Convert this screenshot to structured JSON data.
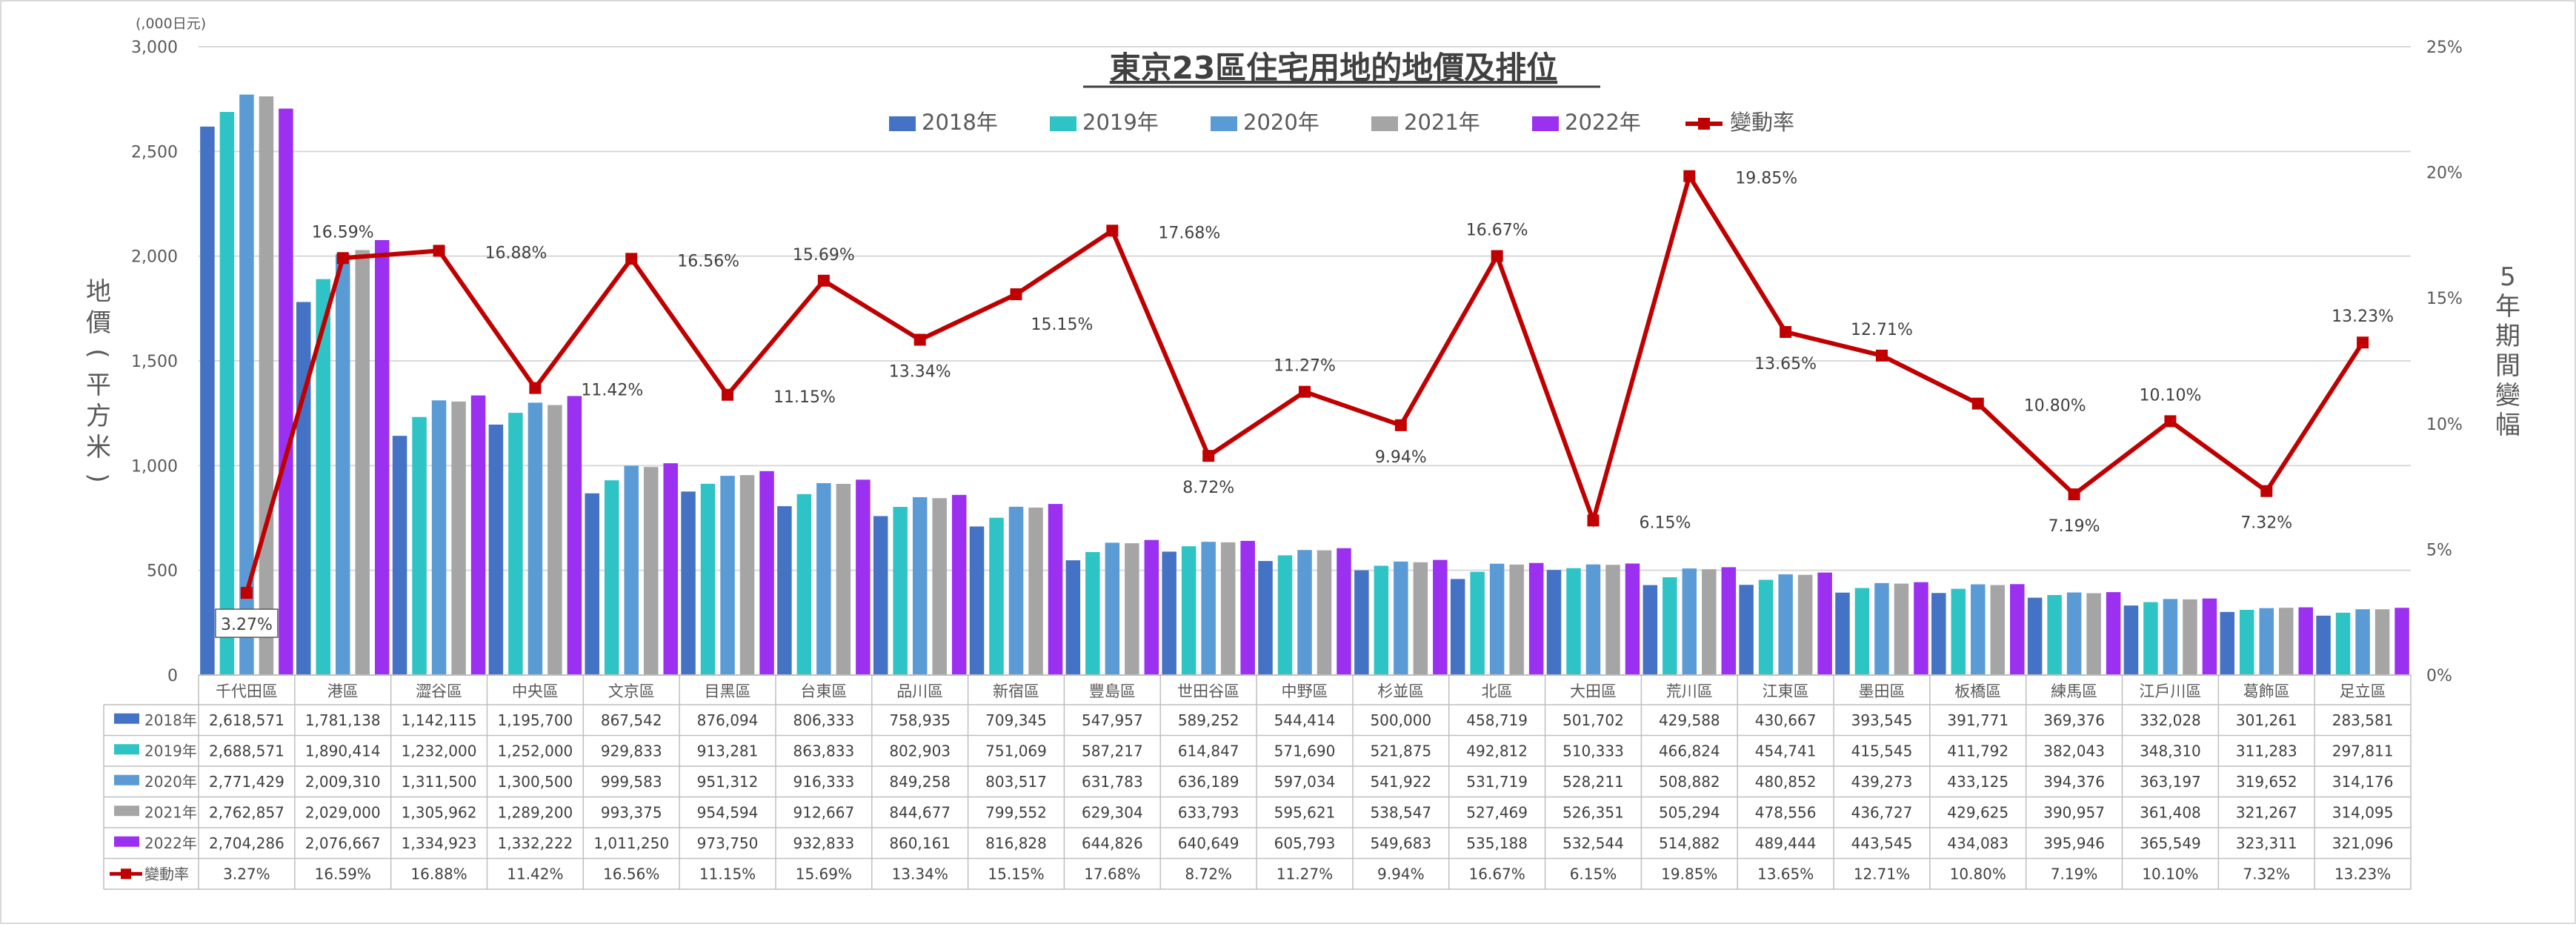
{
  "chart_data": {
    "type": "bar",
    "title": "東京23區住宅用地的地價及排位",
    "unit_label": "(,000日元)",
    "ylabel": "地價（平方米）",
    "y2label": "5年期間變幅",
    "ylim": [
      0,
      3000
    ],
    "y_ticks": [
      "0",
      "500",
      "1,000",
      "1,500",
      "2,000",
      "2,500",
      "3,000"
    ],
    "y2lim": [
      0,
      25
    ],
    "y2_ticks": [
      "0%",
      "5%",
      "10%",
      "15%",
      "20%",
      "25%"
    ],
    "grid": true,
    "legend_position": "top",
    "categories": [
      "千代田區",
      "港區",
      "澀谷區",
      "中央區",
      "文京區",
      "目黑區",
      "台東區",
      "品川區",
      "新宿區",
      "豐島區",
      "世田谷區",
      "中野區",
      "杉並區",
      "北區",
      "大田區",
      "荒川區",
      "江東區",
      "墨田區",
      "板橋區",
      "練馬區",
      "江戶川區",
      "葛飾區",
      "足立區"
    ],
    "series": [
      {
        "name": "2018年",
        "color": "#4472C4",
        "values": [
          2618571,
          1781138,
          1142115,
          1195700,
          867542,
          876094,
          806333,
          758935,
          709345,
          547957,
          589252,
          544414,
          500000,
          458719,
          501702,
          429588,
          430667,
          393545,
          391771,
          369376,
          332028,
          301261,
          283581
        ],
        "labels": [
          "2,618,571",
          "1,781,138",
          "1,142,115",
          "1,195,700",
          "867,542",
          "876,094",
          "806,333",
          "758,935",
          "709,345",
          "547,957",
          "589,252",
          "544,414",
          "500,000",
          "458,719",
          "501,702",
          "429,588",
          "430,667",
          "393,545",
          "391,771",
          "369,376",
          "332,028",
          "301,261",
          "283,581"
        ]
      },
      {
        "name": "2019年",
        "color": "#2EC4C6",
        "values": [
          2688571,
          1890414,
          1232000,
          1252000,
          929833,
          913281,
          863833,
          802903,
          751069,
          587217,
          614847,
          571690,
          521875,
          492812,
          510333,
          466824,
          454741,
          415545,
          411792,
          382043,
          348310,
          311283,
          297811
        ],
        "labels": [
          "2,688,571",
          "1,890,414",
          "1,232,000",
          "1,252,000",
          "929,833",
          "913,281",
          "863,833",
          "802,903",
          "751,069",
          "587,217",
          "614,847",
          "571,690",
          "521,875",
          "492,812",
          "510,333",
          "466,824",
          "454,741",
          "415,545",
          "411,792",
          "382,043",
          "348,310",
          "311,283",
          "297,811"
        ]
      },
      {
        "name": "2020年",
        "color": "#5B9BD5",
        "values": [
          2771429,
          2009310,
          1311500,
          1300500,
          999583,
          951312,
          916333,
          849258,
          803517,
          631783,
          636189,
          597034,
          541922,
          531719,
          528211,
          508882,
          480852,
          439273,
          433125,
          394376,
          363197,
          319652,
          314176
        ],
        "labels": [
          "2,771,429",
          "2,009,310",
          "1,311,500",
          "1,300,500",
          "999,583",
          "951,312",
          "916,333",
          "849,258",
          "803,517",
          "631,783",
          "636,189",
          "597,034",
          "541,922",
          "531,719",
          "528,211",
          "508,882",
          "480,852",
          "439,273",
          "433,125",
          "394,376",
          "363,197",
          "319,652",
          "314,176"
        ]
      },
      {
        "name": "2021年",
        "color": "#A5A5A5",
        "values": [
          2762857,
          2029000,
          1305962,
          1289200,
          993375,
          954594,
          912667,
          844677,
          799552,
          629304,
          633793,
          595621,
          538547,
          527469,
          526351,
          505294,
          478556,
          436727,
          429625,
          390957,
          361408,
          321267,
          314095
        ],
        "labels": [
          "2,762,857",
          "2,029,000",
          "1,305,962",
          "1,289,200",
          "993,375",
          "954,594",
          "912,667",
          "844,677",
          "799,552",
          "629,304",
          "633,793",
          "595,621",
          "538,547",
          "527,469",
          "526,351",
          "505,294",
          "478,556",
          "436,727",
          "429,625",
          "390,957",
          "361,408",
          "321,267",
          "314,095"
        ]
      },
      {
        "name": "2022年",
        "color": "#9B30F0",
        "values": [
          2704286,
          2076667,
          1334923,
          1332222,
          1011250,
          973750,
          932833,
          860161,
          816828,
          644826,
          640649,
          605793,
          549683,
          535188,
          532544,
          514882,
          489444,
          443545,
          434083,
          395946,
          365549,
          323311,
          321096
        ],
        "labels": [
          "2,704,286",
          "2,076,667",
          "1,334,923",
          "1,332,222",
          "1,011,250",
          "973,750",
          "932,833",
          "860,161",
          "816,828",
          "644,826",
          "640,649",
          "605,793",
          "549,683",
          "535,188",
          "532,544",
          "514,882",
          "489,444",
          "443,545",
          "434,083",
          "395,946",
          "365,549",
          "323,311",
          "321,096"
        ]
      }
    ],
    "line_series": {
      "name": "變動率",
      "color": "#C00000",
      "values": [
        3.27,
        16.59,
        16.88,
        11.42,
        16.56,
        11.15,
        15.69,
        13.34,
        15.15,
        17.68,
        8.72,
        11.27,
        9.94,
        16.67,
        6.15,
        19.85,
        13.65,
        12.71,
        10.8,
        7.19,
        10.1,
        7.32,
        13.23
      ],
      "labels": [
        "3.27%",
        "16.59%",
        "16.88%",
        "11.42%",
        "16.56%",
        "11.15%",
        "15.69%",
        "13.34%",
        "15.15%",
        "17.68%",
        "8.72%",
        "11.27%",
        "9.94%",
        "16.67%",
        "6.15%",
        "19.85%",
        "13.65%",
        "12.71%",
        "10.80%",
        "7.19%",
        "10.10%",
        "7.32%",
        "13.23%"
      ]
    }
  }
}
